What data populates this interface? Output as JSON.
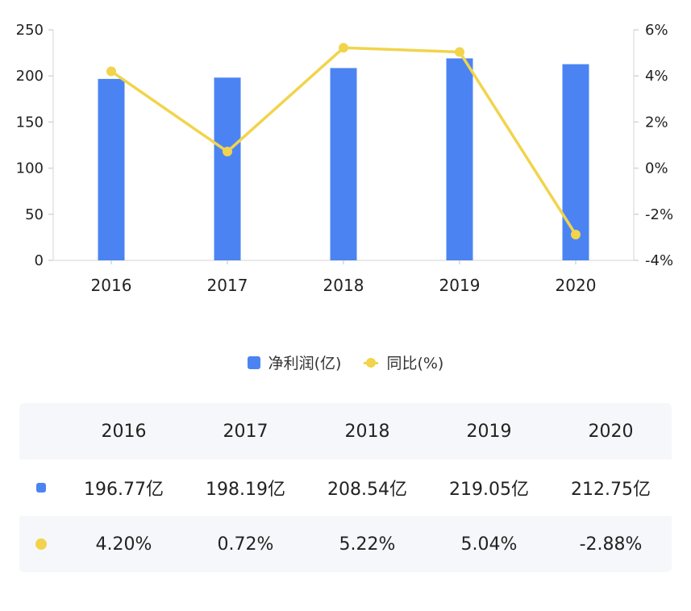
{
  "chart_data": {
    "type": "bar",
    "categories": [
      "2016",
      "2017",
      "2018",
      "2019",
      "2020"
    ],
    "series": [
      {
        "name": "净利润(亿)",
        "type": "bar",
        "axis": "left",
        "values": [
          196.77,
          198.19,
          208.54,
          219.05,
          212.75
        ]
      },
      {
        "name": "同比(%)",
        "type": "line",
        "axis": "right",
        "values": [
          4.2,
          0.72,
          5.22,
          5.04,
          -2.88
        ]
      }
    ],
    "y_left": {
      "ticks": [
        "250",
        "200",
        "150",
        "100",
        "50",
        "0"
      ],
      "ylim": [
        0,
        250
      ]
    },
    "y_right": {
      "ticks": [
        "6%",
        "4%",
        "2%",
        "0%",
        "-2%",
        "-4%"
      ],
      "ylim": [
        -4,
        6
      ]
    },
    "colors": {
      "bar": "#4b84f2",
      "line": "#f1d44c"
    },
    "legend_position": "bottom",
    "grid": false
  },
  "legend": {
    "items": [
      {
        "label": "净利润(亿)",
        "color": "#4b84f2"
      },
      {
        "label": "同比(%)",
        "color": "#f1d44c"
      }
    ]
  },
  "table": {
    "headers": [
      "2016",
      "2017",
      "2018",
      "2019",
      "2020"
    ],
    "rows": [
      {
        "color": "#4b84f2",
        "marker": "square",
        "cells": [
          "196.77亿",
          "198.19亿",
          "208.54亿",
          "219.05亿",
          "212.75亿"
        ]
      },
      {
        "color": "#f1d44c",
        "marker": "circle",
        "cells": [
          "4.20%",
          "0.72%",
          "5.22%",
          "5.04%",
          "-2.88%"
        ]
      }
    ]
  }
}
